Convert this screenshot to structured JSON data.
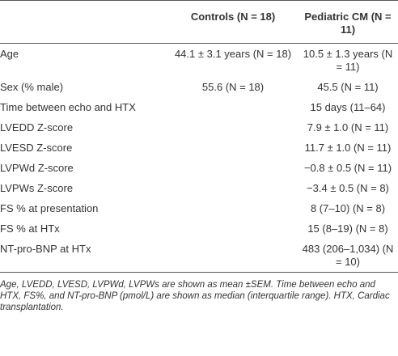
{
  "table": {
    "header": [
      null,
      "Controls (N = 18)",
      "Pediatric CM (N = 11)"
    ],
    "rows": [
      [
        "Age",
        "44.1 ± 3.1 years (N = 18)",
        "10.5 ± 1.3 years (N = 11)"
      ],
      [
        "Sex (% male)",
        "55.6 (N = 18)",
        "45.5 (N = 11)"
      ],
      [
        "Time between echo and HTX",
        null,
        "15 days (11–64)"
      ],
      [
        "LVEDD Z-score",
        null,
        "7.9 ± 1.0 (N = 11)"
      ],
      [
        "LVESD Z-score",
        null,
        "11.7 ± 1.0 (N = 11)"
      ],
      [
        "LVPWd Z-score",
        null,
        "−0.8 ± 0.5 (N = 11)"
      ],
      [
        "LVPWs Z-score",
        null,
        "−3.4 ± 0.5 (N = 8)"
      ],
      [
        "FS % at presentation",
        null,
        "8 (7–10) (N = 8)"
      ],
      [
        "FS % at HTx",
        null,
        "15 (8–19) (N = 8)"
      ],
      [
        "NT-pro-BNP at HTx",
        null,
        "483 (206–1,034) (N = 10)"
      ]
    ],
    "footnote": "Age, LVEDD, LVESD, LVPWd, LVPWs are shown as mean ±SEM. Time between echo and HTX, FS%, and NT-pro-BNP (pmol/L) are shown as median (interquartile range). HTX, Cardiac transplantation."
  }
}
